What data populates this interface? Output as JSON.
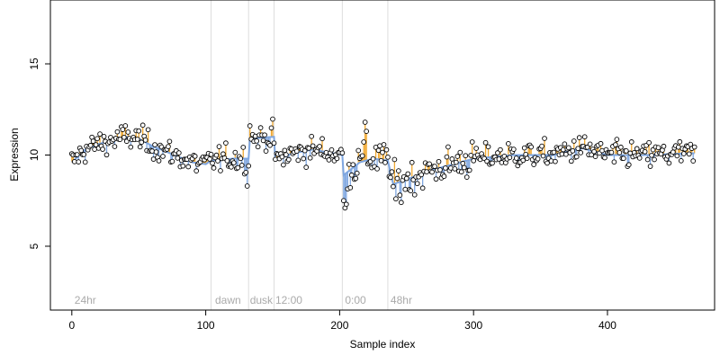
{
  "chart_data": {
    "type": "scatter",
    "xlabel": "Sample index",
    "ylabel": "Expression",
    "xlim": [
      -16,
      480
    ],
    "ylim": [
      1.5,
      18.5
    ],
    "x_ticks": [
      0,
      100,
      200,
      300,
      400
    ],
    "y_ticks": [
      5,
      10,
      15
    ],
    "grid": false,
    "colors": {
      "fitted_line": "#7ea6e0",
      "residual_up": "#f0a830",
      "residual_down": "#7ea6e0",
      "segment_line": "#dddddd",
      "point_fill": "#ffffff",
      "point_stroke": "#000000",
      "annotation_text": "#aaaaaa"
    },
    "segment_boundaries": [
      104,
      132,
      151,
      202,
      236
    ],
    "annotations": [
      {
        "label": "24hr",
        "x": 2
      },
      {
        "label": "dawn",
        "x": 107
      },
      {
        "label": "dusk",
        "x": 133
      },
      {
        "label": "12:00",
        "x": 152
      },
      {
        "label": "0:00",
        "x": 204
      },
      {
        "label": "48hr",
        "x": 238
      }
    ],
    "n_points": 466,
    "fitted_profile": [
      [
        0,
        9.6
      ],
      [
        10,
        10.3
      ],
      [
        20,
        10.6
      ],
      [
        30,
        10.8
      ],
      [
        40,
        11.0
      ],
      [
        50,
        10.9
      ],
      [
        60,
        10.5
      ],
      [
        70,
        10.2
      ],
      [
        80,
        9.9
      ],
      [
        90,
        9.6
      ],
      [
        100,
        9.5
      ],
      [
        104,
        9.7
      ],
      [
        120,
        9.8
      ],
      [
        132,
        9.8
      ],
      [
        133,
        10.9
      ],
      [
        151,
        11.0
      ],
      [
        152,
        9.7
      ],
      [
        165,
        10.1
      ],
      [
        180,
        10.3
      ],
      [
        195,
        10.1
      ],
      [
        202,
        10.0
      ],
      [
        203,
        8.9
      ],
      [
        215,
        9.6
      ],
      [
        225,
        9.8
      ],
      [
        236,
        9.7
      ],
      [
        240,
        8.4
      ],
      [
        255,
        8.8
      ],
      [
        270,
        9.2
      ],
      [
        285,
        9.5
      ],
      [
        300,
        9.8
      ],
      [
        330,
        10.0
      ],
      [
        360,
        10.0
      ],
      [
        380,
        10.4
      ],
      [
        400,
        10.0
      ],
      [
        430,
        10.0
      ],
      [
        462,
        10.1
      ]
    ]
  }
}
